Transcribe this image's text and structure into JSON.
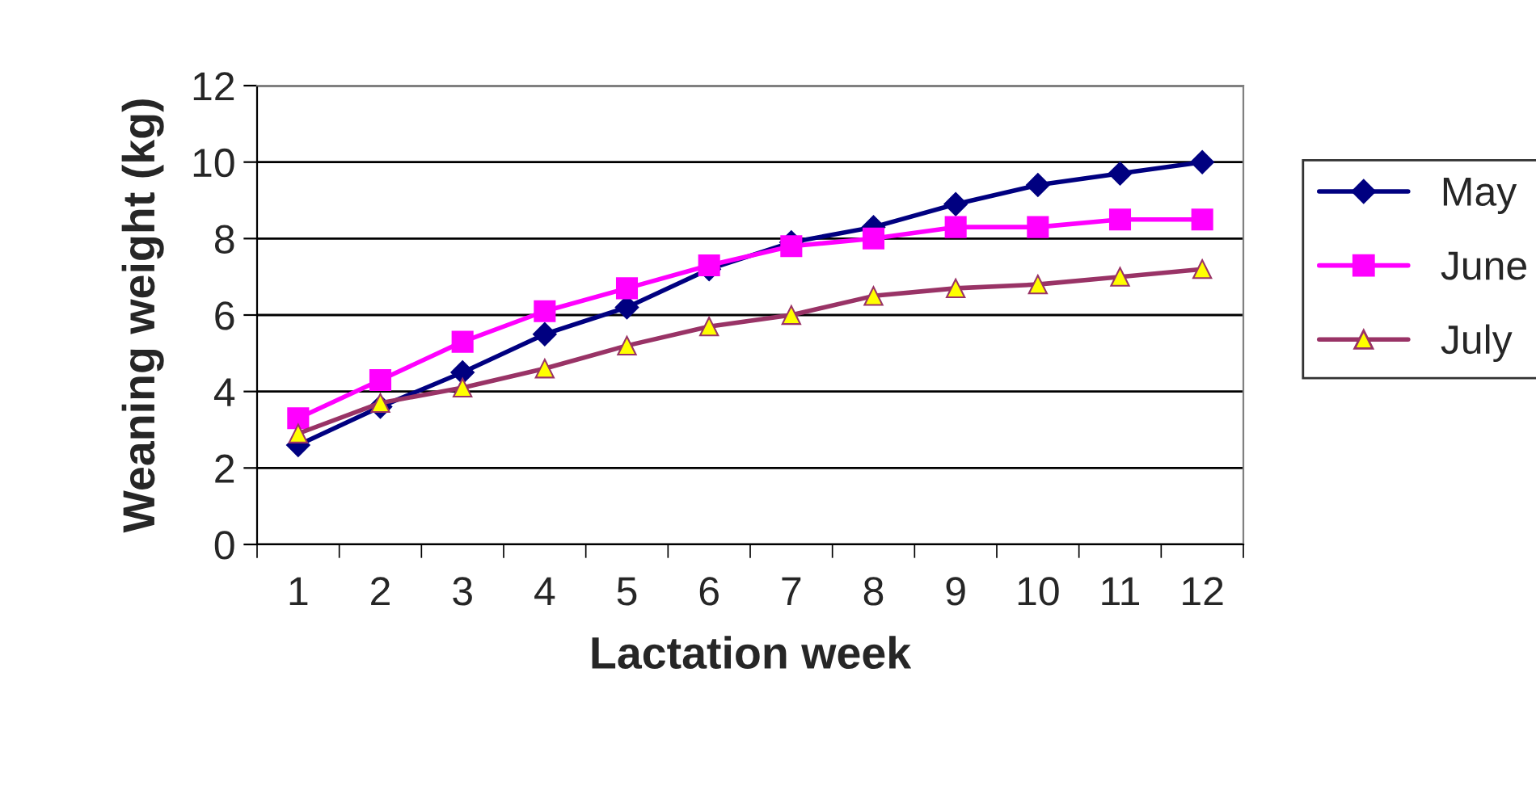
{
  "chart_data": {
    "type": "line",
    "xlabel": "Lactation week",
    "ylabel": "Weaning weight (kg)",
    "categories": [
      "1",
      "2",
      "3",
      "4",
      "5",
      "6",
      "7",
      "8",
      "9",
      "10",
      "11",
      "12"
    ],
    "series": [
      {
        "name": "May",
        "color": "#000080",
        "marker": "diamond",
        "values": [
          2.6,
          3.6,
          4.5,
          5.5,
          6.2,
          7.2,
          7.9,
          8.3,
          8.9,
          9.4,
          9.7,
          10.0
        ]
      },
      {
        "name": "June",
        "color": "#ff00ff",
        "marker": "square",
        "values": [
          3.3,
          4.3,
          5.3,
          6.1,
          6.7,
          7.3,
          7.8,
          8.0,
          8.3,
          8.3,
          8.5,
          8.5
        ]
      },
      {
        "name": "July",
        "color": "#993366",
        "marker": "triangle",
        "values": [
          2.9,
          3.7,
          4.1,
          4.6,
          5.2,
          5.7,
          6.0,
          6.5,
          6.7,
          6.8,
          7.0,
          7.2
        ]
      }
    ],
    "ylim": [
      0,
      12
    ],
    "yticks": [
      0,
      2,
      4,
      6,
      8,
      10,
      12
    ],
    "grid": "y",
    "legend": "right",
    "line_style": "solid"
  }
}
